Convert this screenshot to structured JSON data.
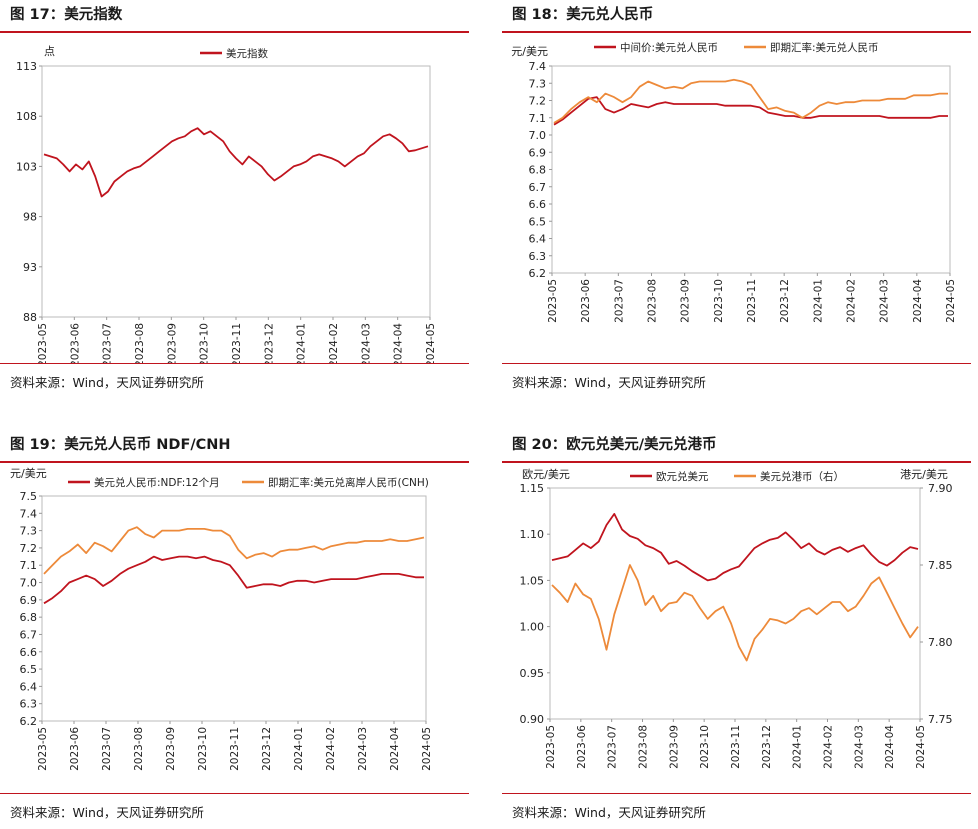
{
  "colors": {
    "red": "#c0141e",
    "orange": "#ed8a3a",
    "frame": "#c0141e"
  },
  "source": "资料来源：Wind，天风证券研究所",
  "months_a": [
    "2023-05",
    "2023-06",
    "2023-07",
    "2023-08",
    "2023-09",
    "2023-10",
    "2023-11",
    "2023-12",
    "2024-01",
    "2024-02",
    "2024-03",
    "2024-04",
    "2024-05"
  ],
  "panels": [
    {
      "title": "图 17：美元指数",
      "source": "资料来源：Wind，天风证券研究所"
    },
    {
      "title": "图 18：美元兑人民币",
      "source": "资料来源：Wind，天风证券研究所"
    },
    {
      "title": "图 19：美元兑人民币 NDF/CNH",
      "source": "资料来源：Wind，天风证券研究所"
    },
    {
      "title": "图 20：欧元兑美元/美元兑港币",
      "source": "资料来源：Wind，天风证券研究所"
    }
  ],
  "chart_data": [
    {
      "type": "line",
      "unit_label": "点",
      "ylim": [
        88,
        113
      ],
      "yticks": [
        "113",
        "108",
        "103",
        "98",
        "93",
        "88"
      ],
      "xticks": [
        "2023-05",
        "2023-06",
        "2023-07",
        "2023-08",
        "2023-09",
        "2023-10",
        "2023-11",
        "2023-12",
        "2024-01",
        "2024-02",
        "2024-03",
        "2024-04",
        "2024-05"
      ],
      "series": [
        {
          "name": "美元指数",
          "color": "#c0141e",
          "values": [
            104.2,
            104.0,
            103.8,
            103.2,
            102.5,
            103.2,
            102.7,
            103.5,
            102.0,
            100.0,
            100.5,
            101.5,
            102.0,
            102.5,
            102.8,
            103.0,
            103.5,
            104.0,
            104.5,
            105.0,
            105.5,
            105.8,
            106.0,
            106.5,
            106.8,
            106.2,
            106.5,
            106.0,
            105.5,
            104.5,
            103.8,
            103.2,
            104.0,
            103.5,
            103.0,
            102.2,
            101.6,
            102.0,
            102.5,
            103.0,
            103.2,
            103.5,
            104.0,
            104.2,
            104.0,
            103.8,
            103.5,
            103.0,
            103.5,
            104.0,
            104.3,
            105.0,
            105.5,
            106.0,
            106.2,
            105.8,
            105.3,
            104.5,
            104.6,
            104.8,
            105.0
          ]
        }
      ]
    },
    {
      "type": "line",
      "unit_label": "元/美元",
      "ylim": [
        6.2,
        7.4
      ],
      "yticks": [
        "7.4",
        "7.3",
        "7.2",
        "7.1",
        "7.0",
        "6.9",
        "6.8",
        "6.7",
        "6.6",
        "6.5",
        "6.4",
        "6.3",
        "6.2"
      ],
      "xticks": [
        "2023-05",
        "2023-06",
        "2023-07",
        "2023-08",
        "2023-09",
        "2023-10",
        "2023-11",
        "2023-12",
        "2024-01",
        "2024-02",
        "2024-03",
        "2024-04",
        "2024-05"
      ],
      "series": [
        {
          "name": "中间价:美元兑人民币",
          "color": "#c0141e",
          "values": [
            7.06,
            7.09,
            7.13,
            7.17,
            7.21,
            7.22,
            7.15,
            7.13,
            7.15,
            7.18,
            7.17,
            7.16,
            7.18,
            7.19,
            7.18,
            7.18,
            7.18,
            7.18,
            7.18,
            7.18,
            7.17,
            7.17,
            7.17,
            7.17,
            7.16,
            7.13,
            7.12,
            7.11,
            7.11,
            7.1,
            7.1,
            7.11,
            7.11,
            7.11,
            7.11,
            7.11,
            7.11,
            7.11,
            7.11,
            7.1,
            7.1,
            7.1,
            7.1,
            7.1,
            7.1,
            7.11,
            7.11
          ]
        },
        {
          "name": "即期汇率:美元兑人民币",
          "color": "#ed8a3a",
          "values": [
            7.07,
            7.1,
            7.15,
            7.19,
            7.22,
            7.19,
            7.24,
            7.22,
            7.19,
            7.22,
            7.28,
            7.31,
            7.29,
            7.27,
            7.28,
            7.27,
            7.3,
            7.31,
            7.31,
            7.31,
            7.31,
            7.32,
            7.31,
            7.29,
            7.22,
            7.15,
            7.16,
            7.14,
            7.13,
            7.1,
            7.13,
            7.17,
            7.19,
            7.18,
            7.19,
            7.19,
            7.2,
            7.2,
            7.2,
            7.21,
            7.21,
            7.21,
            7.23,
            7.23,
            7.23,
            7.24,
            7.24
          ]
        }
      ]
    },
    {
      "type": "line",
      "unit_label": "元/美元",
      "ylim": [
        6.2,
        7.5
      ],
      "yticks": [
        "7.5",
        "7.4",
        "7.3",
        "7.2",
        "7.1",
        "7.0",
        "6.9",
        "6.8",
        "6.7",
        "6.6",
        "6.5",
        "6.4",
        "6.3",
        "6.2"
      ],
      "xticks": [
        "2023-05",
        "2023-06",
        "2023-07",
        "2023-08",
        "2023-09",
        "2023-10",
        "2023-11",
        "2023-12",
        "2024-01",
        "2024-02",
        "2024-03",
        "2024-04",
        "2024-05"
      ],
      "series": [
        {
          "name": "美元兑人民币:NDF:12个月",
          "color": "#c0141e",
          "values": [
            6.88,
            6.91,
            6.95,
            7.0,
            7.02,
            7.04,
            7.02,
            6.98,
            7.01,
            7.05,
            7.08,
            7.1,
            7.12,
            7.15,
            7.13,
            7.14,
            7.15,
            7.15,
            7.14,
            7.15,
            7.13,
            7.12,
            7.1,
            7.04,
            6.97,
            6.98,
            6.99,
            6.99,
            6.98,
            7.0,
            7.01,
            7.01,
            7.0,
            7.01,
            7.02,
            7.02,
            7.02,
            7.02,
            7.03,
            7.04,
            7.05,
            7.05,
            7.05,
            7.04,
            7.03,
            7.03
          ]
        },
        {
          "name": "即期汇率:美元兑离岸人民币(CNH)",
          "color": "#ed8a3a",
          "values": [
            7.05,
            7.1,
            7.15,
            7.18,
            7.22,
            7.17,
            7.23,
            7.21,
            7.18,
            7.24,
            7.3,
            7.32,
            7.28,
            7.26,
            7.3,
            7.3,
            7.3,
            7.31,
            7.31,
            7.31,
            7.3,
            7.3,
            7.27,
            7.19,
            7.14,
            7.16,
            7.17,
            7.15,
            7.18,
            7.19,
            7.19,
            7.2,
            7.21,
            7.19,
            7.21,
            7.22,
            7.23,
            7.23,
            7.24,
            7.24,
            7.24,
            7.25,
            7.24,
            7.24,
            7.25,
            7.26
          ]
        }
      ]
    },
    {
      "type": "line",
      "unit_label_left": "欧元/美元",
      "unit_label_right": "港元/美元",
      "ylim": [
        0.9,
        1.15
      ],
      "ylim_right": [
        7.75,
        7.9
      ],
      "yticks": [
        "1.15",
        "1.10",
        "1.05",
        "1.00",
        "0.95",
        "0.90"
      ],
      "yticks_right": [
        "7.90",
        "7.85",
        "7.80",
        "7.75"
      ],
      "xticks": [
        "2023-05",
        "2023-06",
        "2023-07",
        "2023-08",
        "2023-09",
        "2023-10",
        "2023-11",
        "2023-12",
        "2024-01",
        "2024-02",
        "2024-03",
        "2024-04",
        "2024-05"
      ],
      "series": [
        {
          "name": "欧元兑美元",
          "color": "#c0141e",
          "axis": "left",
          "values": [
            1.072,
            1.074,
            1.076,
            1.083,
            1.09,
            1.085,
            1.092,
            1.11,
            1.122,
            1.105,
            1.098,
            1.095,
            1.088,
            1.085,
            1.08,
            1.068,
            1.071,
            1.066,
            1.06,
            1.055,
            1.05,
            1.052,
            1.058,
            1.062,
            1.065,
            1.075,
            1.085,
            1.09,
            1.094,
            1.096,
            1.102,
            1.094,
            1.085,
            1.09,
            1.082,
            1.078,
            1.083,
            1.086,
            1.081,
            1.085,
            1.088,
            1.078,
            1.07,
            1.066,
            1.072,
            1.08,
            1.086,
            1.084
          ]
        },
        {
          "name": "美元兑港币（右）",
          "color": "#ed8a3a",
          "axis": "right",
          "values": [
            7.837,
            7.832,
            7.826,
            7.838,
            7.831,
            7.828,
            7.815,
            7.795,
            7.818,
            7.834,
            7.85,
            7.84,
            7.824,
            7.83,
            7.82,
            7.825,
            7.826,
            7.832,
            7.83,
            7.822,
            7.815,
            7.82,
            7.823,
            7.812,
            7.797,
            7.788,
            7.802,
            7.808,
            7.815,
            7.814,
            7.812,
            7.815,
            7.82,
            7.822,
            7.818,
            7.822,
            7.826,
            7.826,
            7.82,
            7.823,
            7.83,
            7.838,
            7.842,
            7.832,
            7.822,
            7.812,
            7.803,
            7.81
          ]
        }
      ]
    }
  ]
}
